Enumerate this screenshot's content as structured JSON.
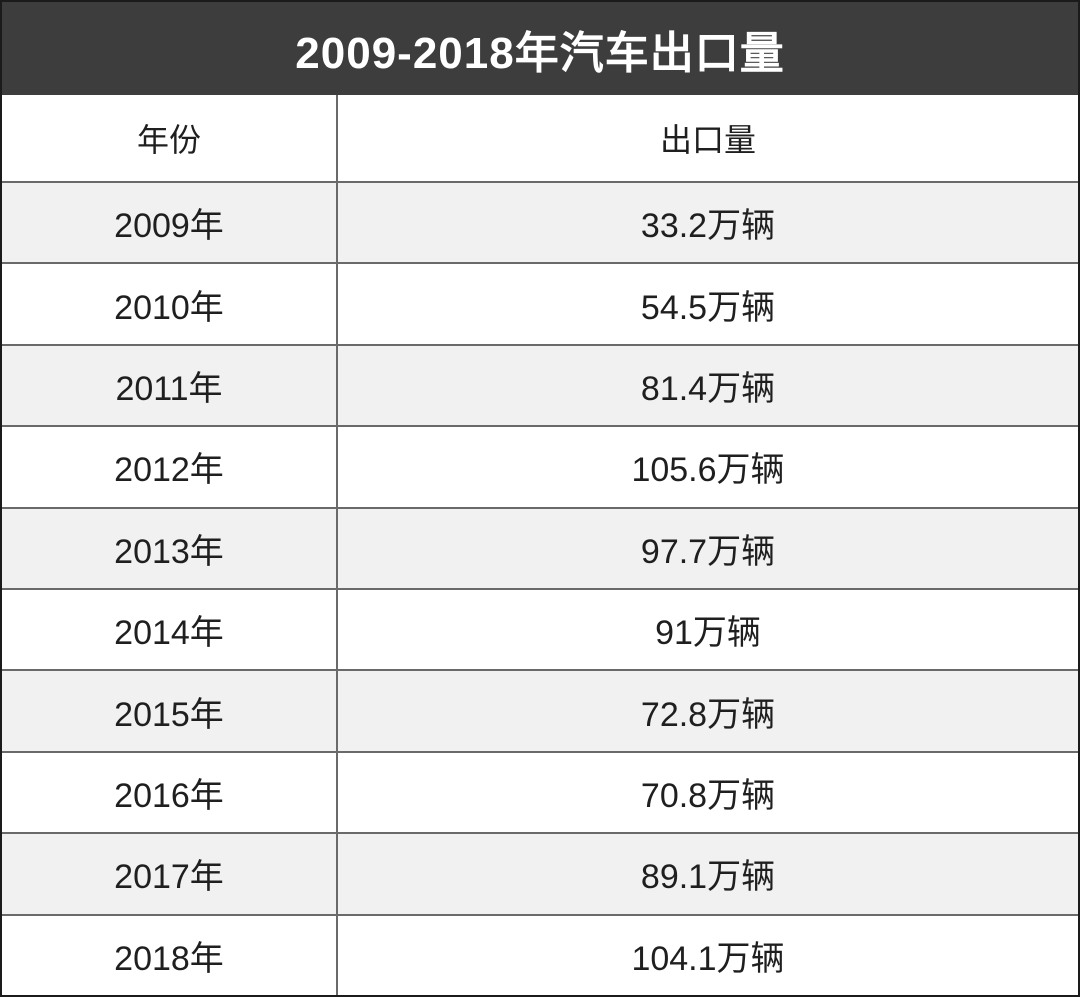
{
  "title": "2009-2018年汽车出口量",
  "table": {
    "columns": [
      "年份",
      "出口量"
    ],
    "rows": [
      {
        "year": "2009年",
        "value": "33.2万辆"
      },
      {
        "year": "2010年",
        "value": "54.5万辆"
      },
      {
        "year": "2011年",
        "value": "81.4万辆"
      },
      {
        "year": "2012年",
        "value": "105.6万辆"
      },
      {
        "year": "2013年",
        "value": "97.7万辆"
      },
      {
        "year": "2014年",
        "value": "91万辆"
      },
      {
        "year": "2015年",
        "value": "72.8万辆"
      },
      {
        "year": "2016年",
        "value": "70.8万辆"
      },
      {
        "year": "2017年",
        "value": "89.1万辆"
      },
      {
        "year": "2018年",
        "value": "104.1万辆"
      }
    ]
  },
  "colors": {
    "title_bar_bg": "#3d3d3d",
    "title_text": "#ffffff",
    "stripe_row_bg": "#f1f1f1",
    "plain_row_bg": "#ffffff",
    "grid_line": "#6a6a6a",
    "outer_border": "#1b1b1b",
    "body_text": "#1f1f1f"
  },
  "chart_data": {
    "type": "table",
    "title": "2009-2018年汽车出口量",
    "columns": [
      "年份",
      "出口量"
    ],
    "categories": [
      "2009年",
      "2010年",
      "2011年",
      "2012年",
      "2013年",
      "2014年",
      "2015年",
      "2016年",
      "2017年",
      "2018年"
    ],
    "values": [
      33.2,
      54.5,
      81.4,
      105.6,
      97.7,
      91,
      72.8,
      70.8,
      89.1,
      104.1
    ],
    "unit": "万辆",
    "layout": "striped-rows, centered text, two columns"
  }
}
